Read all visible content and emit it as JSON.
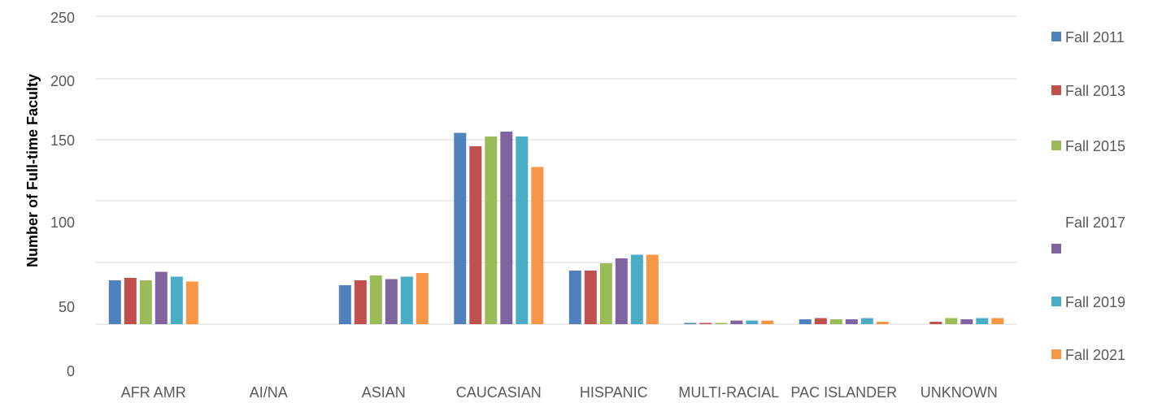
{
  "chart_data": {
    "type": "bar",
    "title": "",
    "xlabel": "",
    "ylabel": "Number of Full-time Faculty",
    "ylim": [
      0,
      250
    ],
    "y_ticks": [
      "0",
      "50",
      "100",
      "150",
      "200",
      "250"
    ],
    "grid": true,
    "legend_position": "right",
    "categories": [
      "AFR AMR",
      "AI/NA",
      "ASIAN",
      "CAUCASIAN",
      "HISPANIC",
      "MULTI-RACIAL",
      "PAC ISLANDER",
      "UNKNOWN"
    ],
    "series": [
      {
        "name": "Fall 2011",
        "color": "#4f81bd",
        "values": [
          36,
          0,
          32,
          157,
          44,
          1,
          4,
          0
        ]
      },
      {
        "name": "Fall 2013",
        "color": "#c0504d",
        "values": [
          38,
          0,
          36,
          146,
          44,
          1,
          5,
          2
        ]
      },
      {
        "name": "Fall 2015",
        "color": "#9bbb59",
        "values": [
          36,
          0,
          40,
          154,
          50,
          1,
          4,
          5
        ]
      },
      {
        "name": "Fall 2017",
        "color": "#8064a2",
        "values": [
          43,
          0,
          37,
          158,
          54,
          3,
          4,
          4
        ]
      },
      {
        "name": "Fall 2019",
        "color": "#4bacc6",
        "values": [
          39,
          0,
          39,
          154,
          57,
          3,
          5,
          5
        ]
      },
      {
        "name": "Fall 2021",
        "color": "#f79646",
        "values": [
          35,
          0,
          42,
          129,
          57,
          3,
          2,
          5
        ]
      }
    ]
  }
}
